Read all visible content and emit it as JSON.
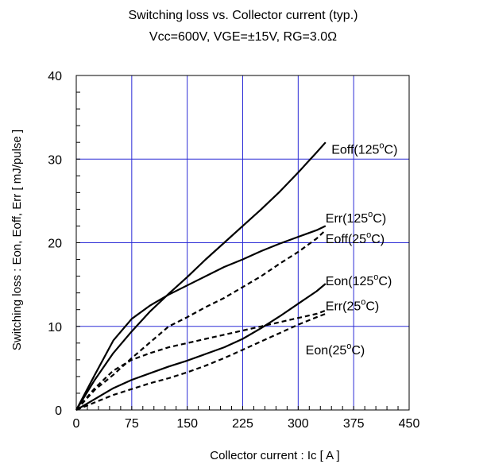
{
  "chart_data": {
    "type": "line",
    "title": "Switching loss vs. Collector current (typ.)",
    "subtitle": "Vcc=600V, VGE=±15V, RG=3.0Ω",
    "xlabel": "Collector current : Ic [ A ]",
    "ylabel": "Switching loss : Eon, Eoff, Err [ mJ/pulse ]",
    "xlim": [
      0,
      450
    ],
    "ylim": [
      0,
      40
    ],
    "xticks": [
      "0",
      "75",
      "150",
      "225",
      "300",
      "375",
      "450"
    ],
    "yticks": [
      "0",
      "10",
      "20",
      "30",
      "40"
    ],
    "grid": true,
    "grid_color": "#2b2bd6",
    "series": [
      {
        "name": "Eoff(125°C)",
        "style": "solid",
        "x": [
          0,
          25,
          50,
          75,
          100,
          125,
          150,
          175,
          200,
          225,
          250,
          275,
          300,
          325,
          337
        ],
        "y": [
          0,
          3.6,
          6.8,
          9.4,
          11.8,
          13.9,
          15.9,
          18.0,
          20.0,
          22.0,
          24.0,
          26.1,
          28.4,
          30.8,
          32.0
        ]
      },
      {
        "name": "Err(125°C)",
        "style": "solid",
        "x": [
          0,
          25,
          50,
          75,
          100,
          125,
          150,
          175,
          200,
          225,
          250,
          275,
          300,
          325,
          337
        ],
        "y": [
          0,
          4.2,
          8.3,
          10.9,
          12.5,
          13.8,
          14.9,
          16.0,
          17.1,
          18.0,
          19.0,
          19.9,
          20.7,
          21.5,
          22.0
        ]
      },
      {
        "name": "Eoff(25°C)",
        "style": "dashed",
        "x": [
          0,
          25,
          50,
          75,
          100,
          125,
          150,
          175,
          200,
          225,
          250,
          275,
          300,
          325,
          337
        ],
        "y": [
          0,
          2.4,
          4.2,
          6.2,
          8.1,
          10.0,
          11.1,
          12.3,
          13.4,
          14.7,
          16.0,
          17.5,
          18.9,
          20.5,
          21.5
        ]
      },
      {
        "name": "Eon(125°C)",
        "style": "solid",
        "x": [
          0,
          25,
          50,
          75,
          100,
          125,
          150,
          175,
          200,
          225,
          250,
          275,
          300,
          325,
          337
        ],
        "y": [
          0,
          1.3,
          2.6,
          3.6,
          4.4,
          5.2,
          5.9,
          6.7,
          7.5,
          8.5,
          9.8,
          11.2,
          12.7,
          14.2,
          15.1
        ]
      },
      {
        "name": "Err(25°C)",
        "style": "dashed",
        "x": [
          0,
          25,
          50,
          75,
          100,
          125,
          150,
          175,
          200,
          225,
          250,
          275,
          300,
          325,
          337
        ],
        "y": [
          0,
          2.6,
          4.7,
          6.0,
          6.8,
          7.5,
          8.0,
          8.5,
          9.0,
          9.5,
          10.0,
          10.5,
          11.0,
          11.5,
          11.9
        ]
      },
      {
        "name": "Eon(25°C)",
        "style": "dashed",
        "x": [
          0,
          25,
          50,
          75,
          100,
          125,
          150,
          175,
          200,
          225,
          250,
          275,
          300,
          325,
          337
        ],
        "y": [
          0,
          0.9,
          1.8,
          2.5,
          3.2,
          3.8,
          4.5,
          5.3,
          6.2,
          7.2,
          8.2,
          9.2,
          10.2,
          11.1,
          11.5
        ]
      }
    ],
    "labels": [
      {
        "series": "Eoff(125°C)",
        "base": "Eoff(125",
        "sup": "o",
        "tail": "C)",
        "at_x": 345,
        "at_y": 31.2
      },
      {
        "series": "Err(125°C)",
        "base": "Err(125",
        "sup": "o",
        "tail": "C)",
        "at_x": 337,
        "at_y": 23.0
      },
      {
        "series": "Eoff(25°C)",
        "base": "Eoff(25",
        "sup": "o",
        "tail": "C)",
        "at_x": 337,
        "at_y": 20.5
      },
      {
        "series": "Eon(125°C)",
        "base": "Eon(125",
        "sup": "o",
        "tail": "C)",
        "at_x": 337,
        "at_y": 15.5
      },
      {
        "series": "Err(25°C)",
        "base": "Err(25",
        "sup": "o",
        "tail": "C)",
        "at_x": 337,
        "at_y": 12.5
      },
      {
        "series": "Eon(25°C)",
        "base": "Eon(25",
        "sup": "o",
        "tail": "C)",
        "at_x": 310,
        "at_y": 7.2
      }
    ]
  }
}
